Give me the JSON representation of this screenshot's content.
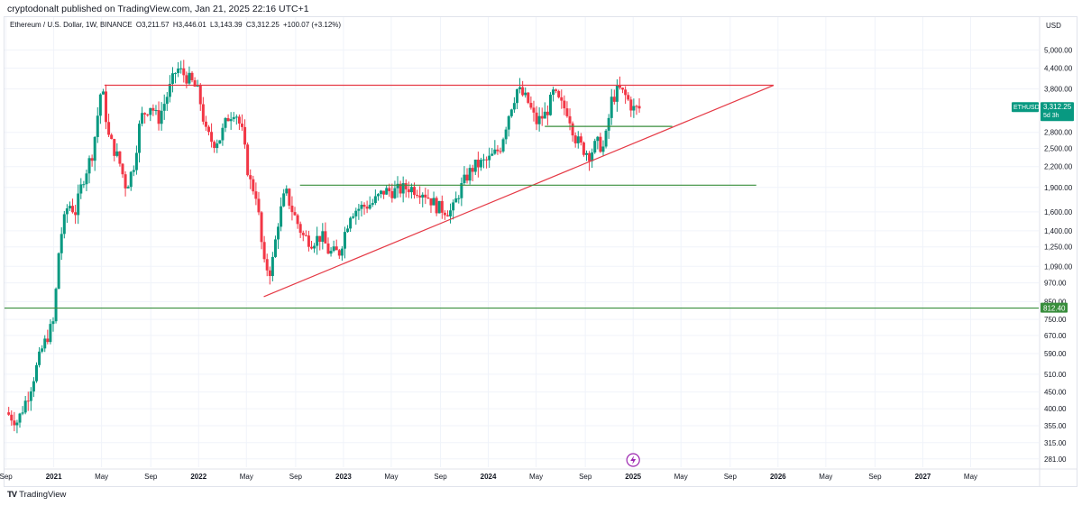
{
  "header": {
    "published_by": "cryptodonalt published on TradingView.com, Jan 21, 2025 22:16 UTC+1"
  },
  "legend": {
    "symbol": "Ethereum / U.S. Dollar, 1W, BINANCE",
    "open": "O3,211.57",
    "high": "H3,446.01",
    "low": "L3,143.39",
    "close": "C3,312.25",
    "change": "+100.07 (+3.12%)"
  },
  "footer": {
    "brand": "TradingView",
    "logo_text": "TV"
  },
  "colors": {
    "bull": "#089981",
    "bear": "#f23645",
    "red_line": "#e53945",
    "green_line": "#388e3c",
    "grid": "#f0f3fa",
    "text": "#131722"
  },
  "chart_data": {
    "type": "candlestick",
    "title": "Ethereum / U.S. Dollar, 1W, BINANCE",
    "currency": "USD",
    "y_scale": "log",
    "ylim": [
      265,
      6300
    ],
    "xlim": [
      2020.66,
      2027.8
    ],
    "x_ticks": [
      {
        "label": "Sep",
        "t": 2020.67
      },
      {
        "label": "2021",
        "t": 2021.0
      },
      {
        "label": "May",
        "t": 2021.33
      },
      {
        "label": "Sep",
        "t": 2021.67
      },
      {
        "label": "2022",
        "t": 2022.0
      },
      {
        "label": "May",
        "t": 2022.33
      },
      {
        "label": "Sep",
        "t": 2022.67
      },
      {
        "label": "2023",
        "t": 2023.0
      },
      {
        "label": "May",
        "t": 2023.33
      },
      {
        "label": "Sep",
        "t": 2023.67
      },
      {
        "label": "2024",
        "t": 2024.0
      },
      {
        "label": "May",
        "t": 2024.33
      },
      {
        "label": "Sep",
        "t": 2024.67
      },
      {
        "label": "2025",
        "t": 2025.0
      },
      {
        "label": "May",
        "t": 2025.33
      },
      {
        "label": "Sep",
        "t": 2025.67
      },
      {
        "label": "2026",
        "t": 2026.0
      },
      {
        "label": "May",
        "t": 2026.33
      },
      {
        "label": "Sep",
        "t": 2026.67
      },
      {
        "label": "2027",
        "t": 2027.0
      },
      {
        "label": "May",
        "t": 2027.33
      }
    ],
    "y_ticks": [
      {
        "label": "5,000.00",
        "v": 5000
      },
      {
        "label": "4,400.00",
        "v": 4400
      },
      {
        "label": "3,800.00",
        "v": 3800
      },
      {
        "label": "2,800.00",
        "v": 2800
      },
      {
        "label": "2,500.00",
        "v": 2500
      },
      {
        "label": "2,200.00",
        "v": 2200
      },
      {
        "label": "1,900.00",
        "v": 1900
      },
      {
        "label": "1,600.00",
        "v": 1600
      },
      {
        "label": "1,400.00",
        "v": 1400
      },
      {
        "label": "1,250.00",
        "v": 1250
      },
      {
        "label": "1,090.00",
        "v": 1090
      },
      {
        "label": "970.00",
        "v": 970
      },
      {
        "label": "850.00",
        "v": 850
      },
      {
        "label": "750.00",
        "v": 750
      },
      {
        "label": "670.00",
        "v": 670
      },
      {
        "label": "590.00",
        "v": 590
      },
      {
        "label": "510.00",
        "v": 510
      },
      {
        "label": "450.00",
        "v": 450
      },
      {
        "label": "400.00",
        "v": 400
      },
      {
        "label": "355.00",
        "v": 355
      },
      {
        "label": "315.00",
        "v": 315
      },
      {
        "label": "281.00",
        "v": 281
      }
    ],
    "price_label": {
      "symbol": "ETHUSD",
      "price": "3,312.25",
      "countdown": "5d 3h",
      "value": 3312.25
    },
    "level_label": {
      "text": "812.40",
      "value": 812.4
    },
    "annotations": [
      {
        "name": "resistance-line",
        "color": "red",
        "t1": 2021.35,
        "v1": 3900,
        "t2": 2025.97,
        "v2": 3900
      },
      {
        "name": "rising-trendline",
        "color": "red",
        "t1": 2022.45,
        "v1": 880,
        "t2": 2025.97,
        "v2": 3900
      },
      {
        "name": "support-line-812",
        "color": "green",
        "t1": 2020.66,
        "v1": 812.4,
        "t2": 2027.8,
        "v2": 812.4
      },
      {
        "name": "support-line-1900",
        "color": "green",
        "t1": 2022.7,
        "v1": 1930,
        "t2": 2025.85,
        "v2": 1930
      },
      {
        "name": "support-line-2900",
        "color": "green",
        "t1": 2024.39,
        "v1": 2920,
        "t2": 2025.27,
        "v2": 2920
      }
    ],
    "price_path": [
      [
        2020.67,
        390
      ],
      [
        2020.75,
        365
      ],
      [
        2020.83,
        450
      ],
      [
        2020.92,
        610
      ],
      [
        2021.0,
        740
      ],
      [
        2021.04,
        1300
      ],
      [
        2021.1,
        1700
      ],
      [
        2021.15,
        1600
      ],
      [
        2021.2,
        2000
      ],
      [
        2021.27,
        2450
      ],
      [
        2021.33,
        3900
      ],
      [
        2021.38,
        2700
      ],
      [
        2021.45,
        2300
      ],
      [
        2021.5,
        1900
      ],
      [
        2021.55,
        2200
      ],
      [
        2021.6,
        3100
      ],
      [
        2021.67,
        3400
      ],
      [
        2021.72,
        3050
      ],
      [
        2021.78,
        3600
      ],
      [
        2021.85,
        4400
      ],
      [
        2021.9,
        4200
      ],
      [
        2021.95,
        4000
      ],
      [
        2022.0,
        3700
      ],
      [
        2022.05,
        2800
      ],
      [
        2022.1,
        2600
      ],
      [
        2022.15,
        2700
      ],
      [
        2022.2,
        3100
      ],
      [
        2022.25,
        3300
      ],
      [
        2022.3,
        2800
      ],
      [
        2022.35,
        2000
      ],
      [
        2022.4,
        1800
      ],
      [
        2022.45,
        1100
      ],
      [
        2022.5,
        1050
      ],
      [
        2022.55,
        1500
      ],
      [
        2022.6,
        1850
      ],
      [
        2022.65,
        1600
      ],
      [
        2022.72,
        1350
      ],
      [
        2022.78,
        1300
      ],
      [
        2022.85,
        1350
      ],
      [
        2022.9,
        1200
      ],
      [
        2022.97,
        1200
      ],
      [
        2023.05,
        1600
      ],
      [
        2023.12,
        1650
      ],
      [
        2023.2,
        1700
      ],
      [
        2023.28,
        1850
      ],
      [
        2023.35,
        1850
      ],
      [
        2023.45,
        1900
      ],
      [
        2023.55,
        1850
      ],
      [
        2023.65,
        1650
      ],
      [
        2023.75,
        1600
      ],
      [
        2023.8,
        1850
      ],
      [
        2023.85,
        2050
      ],
      [
        2023.9,
        2200
      ],
      [
        2024.0,
        2300
      ],
      [
        2024.08,
        2500
      ],
      [
        2024.15,
        3300
      ],
      [
        2024.2,
        3800
      ],
      [
        2024.27,
        3500
      ],
      [
        2024.33,
        3000
      ],
      [
        2024.4,
        3200
      ],
      [
        2024.45,
        3700
      ],
      [
        2024.5,
        3400
      ],
      [
        2024.55,
        3250
      ],
      [
        2024.6,
        2700
      ],
      [
        2024.65,
        2500
      ],
      [
        2024.7,
        2400
      ],
      [
        2024.75,
        2600
      ],
      [
        2024.8,
        2500
      ],
      [
        2024.85,
        3500
      ],
      [
        2024.9,
        3800
      ],
      [
        2024.95,
        3600
      ],
      [
        2025.0,
        3300
      ],
      [
        2025.05,
        3312
      ]
    ]
  }
}
